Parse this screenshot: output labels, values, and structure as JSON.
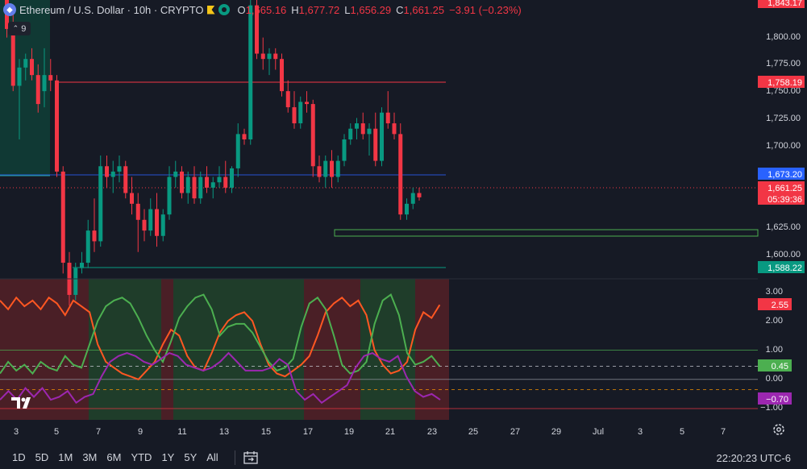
{
  "header": {
    "symbol_title": "Ethereum / U.S. Dollar · 10h · CRYPTO",
    "open_label": "O",
    "open_value": "1,665.16",
    "high_label": "H",
    "high_value": "1,677.72",
    "low_label": "L",
    "low_value": "1,656.29",
    "close_label": "C",
    "close_value": "1,661.25",
    "change_value": "−3.91 (−0.23%)",
    "indicator_count": "9"
  },
  "colors": {
    "up": "#089981",
    "down": "#f23645",
    "rsi_up": "#4caf50",
    "rsi_down": "#ff5722",
    "purple": "#9c27b0",
    "bg": "#161a25"
  },
  "price_axis": {
    "ticks": [
      "1,800.00",
      "1,775.00",
      "1,750.00",
      "1,725.00",
      "1,700.00",
      "1,625.00",
      "1,600.00"
    ],
    "labels": [
      {
        "text": "1,843.17",
        "color": "#f23645"
      },
      {
        "text": "1,758.19",
        "color": "#f23645"
      },
      {
        "text": "1,673.20",
        "color": "#2962ff"
      },
      {
        "text": "1,661.25",
        "color": "#f23645"
      },
      {
        "text": "05:39:36",
        "color": "#f23645"
      },
      {
        "text": "1,588.22",
        "color": "#089981"
      }
    ]
  },
  "osc_axis": {
    "ticks": [
      "3.00",
      "2.00",
      "1.00",
      "0.00",
      "−1.00"
    ],
    "labels": [
      {
        "text": "2.55",
        "color": "#f23645"
      },
      {
        "text": "0.45",
        "color": "#4caf50"
      },
      {
        "text": "−0.70",
        "color": "#9c27b0"
      }
    ]
  },
  "time_axis": {
    "ticks": [
      "3",
      "5",
      "7",
      "9",
      "11",
      "13",
      "15",
      "17",
      "19",
      "21",
      "23",
      "25",
      "27",
      "29",
      "Jul",
      "3",
      "5",
      "7"
    ]
  },
  "chart_data": {
    "type": "candlestick",
    "title": "Ethereum / U.S. Dollar · 10h · CRYPTO",
    "ylim": [
      1585,
      1845
    ],
    "candles": [
      [
        1848,
        1852,
        1810,
        1818
      ],
      [
        1818,
        1832,
        1760,
        1765
      ],
      [
        1765,
        1790,
        1715,
        1782
      ],
      [
        1782,
        1795,
        1770,
        1790
      ],
      [
        1790,
        1800,
        1770,
        1775
      ],
      [
        1775,
        1785,
        1740,
        1748
      ],
      [
        1760,
        1800,
        1745,
        1775
      ],
      [
        1775,
        1790,
        1760,
        1770
      ],
      [
        1770,
        1775,
        1680,
        1685
      ],
      [
        1685,
        1690,
        1590,
        1600
      ],
      [
        1600,
        1610,
        1560,
        1570
      ],
      [
        1570,
        1600,
        1565,
        1595
      ],
      [
        1595,
        1610,
        1590,
        1600
      ],
      [
        1600,
        1640,
        1595,
        1630
      ],
      [
        1630,
        1660,
        1610,
        1620
      ],
      [
        1620,
        1700,
        1615,
        1690
      ],
      [
        1690,
        1700,
        1670,
        1680
      ],
      [
        1680,
        1695,
        1665,
        1685
      ],
      [
        1685,
        1700,
        1675,
        1690
      ],
      [
        1690,
        1695,
        1660,
        1665
      ],
      [
        1665,
        1680,
        1645,
        1655
      ],
      [
        1655,
        1665,
        1610,
        1640
      ],
      [
        1640,
        1650,
        1620,
        1630
      ],
      [
        1630,
        1660,
        1625,
        1650
      ],
      [
        1650,
        1665,
        1615,
        1625
      ],
      [
        1625,
        1650,
        1620,
        1645
      ],
      [
        1645,
        1690,
        1640,
        1680
      ],
      [
        1680,
        1695,
        1670,
        1685
      ],
      [
        1685,
        1690,
        1660,
        1665
      ],
      [
        1665,
        1685,
        1655,
        1680
      ],
      [
        1680,
        1690,
        1655,
        1660
      ],
      [
        1660,
        1685,
        1655,
        1680
      ],
      [
        1680,
        1690,
        1665,
        1670
      ],
      [
        1670,
        1680,
        1660,
        1675
      ],
      [
        1675,
        1690,
        1670,
        1680
      ],
      [
        1680,
        1695,
        1665,
        1670
      ],
      [
        1670,
        1690,
        1665,
        1688
      ],
      [
        1688,
        1730,
        1680,
        1720
      ],
      [
        1720,
        1725,
        1710,
        1715
      ],
      [
        1715,
        1850,
        1710,
        1840
      ],
      [
        1840,
        1848,
        1790,
        1795
      ],
      [
        1795,
        1810,
        1780,
        1790
      ],
      [
        1790,
        1800,
        1775,
        1795
      ],
      [
        1795,
        1800,
        1780,
        1790
      ],
      [
        1790,
        1795,
        1755,
        1760
      ],
      [
        1760,
        1770,
        1740,
        1745
      ],
      [
        1745,
        1760,
        1725,
        1730
      ],
      [
        1730,
        1755,
        1725,
        1750
      ],
      [
        1750,
        1760,
        1740,
        1748
      ],
      [
        1748,
        1752,
        1680,
        1690
      ],
      [
        1690,
        1700,
        1675,
        1680
      ],
      [
        1680,
        1700,
        1670,
        1695
      ],
      [
        1695,
        1705,
        1670,
        1680
      ],
      [
        1680,
        1700,
        1675,
        1695
      ],
      [
        1695,
        1720,
        1690,
        1715
      ],
      [
        1715,
        1730,
        1710,
        1725
      ],
      [
        1725,
        1735,
        1715,
        1730
      ],
      [
        1730,
        1740,
        1715,
        1720
      ],
      [
        1720,
        1730,
        1700,
        1725
      ],
      [
        1725,
        1740,
        1690,
        1695
      ],
      [
        1695,
        1745,
        1690,
        1740
      ],
      [
        1740,
        1760,
        1725,
        1730
      ],
      [
        1730,
        1740,
        1715,
        1720
      ],
      [
        1720,
        1730,
        1640,
        1645
      ],
      [
        1645,
        1660,
        1640,
        1655
      ],
      [
        1655,
        1670,
        1650,
        1665
      ],
      [
        1665,
        1670,
        1658,
        1661
      ]
    ]
  }
}
